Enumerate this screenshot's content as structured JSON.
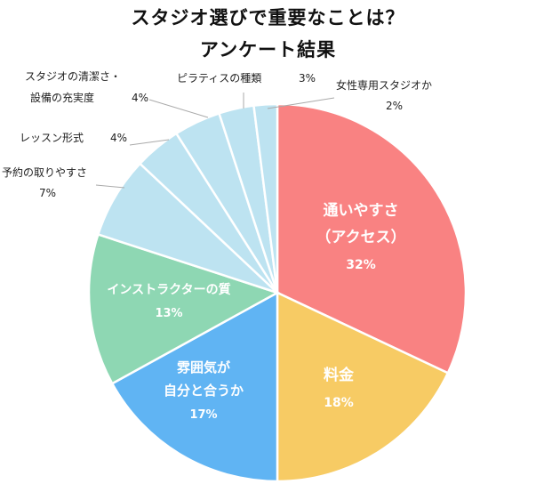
{
  "chart_data": {
    "type": "pie",
    "title_lines": [
      "スタジオ選びで重要なことは？",
      "アンケート結果"
    ],
    "slices": [
      {
        "label_lines": [
          "通いやすさ",
          "（アクセス）"
        ],
        "percent_label": "32%",
        "value": 32,
        "color": "#f98282"
      },
      {
        "label_lines": [
          "料金"
        ],
        "percent_label": "18%",
        "value": 18,
        "color": "#f7cb64"
      },
      {
        "label_lines": [
          "雰囲気が",
          "自分と合うか"
        ],
        "percent_label": "17%",
        "value": 17,
        "color": "#60b4f3"
      },
      {
        "label_lines": [
          "インストラクターの質"
        ],
        "percent_label": "13%",
        "value": 13,
        "color": "#8ed7b3"
      },
      {
        "label_lines": [
          "予約の取りやすさ"
        ],
        "percent_label": "7%",
        "value": 7,
        "color": "#bde3f1"
      },
      {
        "label_lines": [
          "レッスン形式"
        ],
        "percent_label": "4%",
        "value": 4,
        "color": "#bde3f1"
      },
      {
        "label_lines": [
          "スタジオの清潔さ・",
          "設備の充実度"
        ],
        "percent_label": "4%",
        "value": 4,
        "color": "#bde3f1"
      },
      {
        "label_lines": [
          "ピラティスの種類"
        ],
        "percent_label": "3%",
        "value": 3,
        "color": "#bde3f1"
      },
      {
        "label_lines": [
          "女性専用スタジオか"
        ],
        "percent_label": "2%",
        "value": 2,
        "color": "#bde3f1"
      }
    ]
  }
}
